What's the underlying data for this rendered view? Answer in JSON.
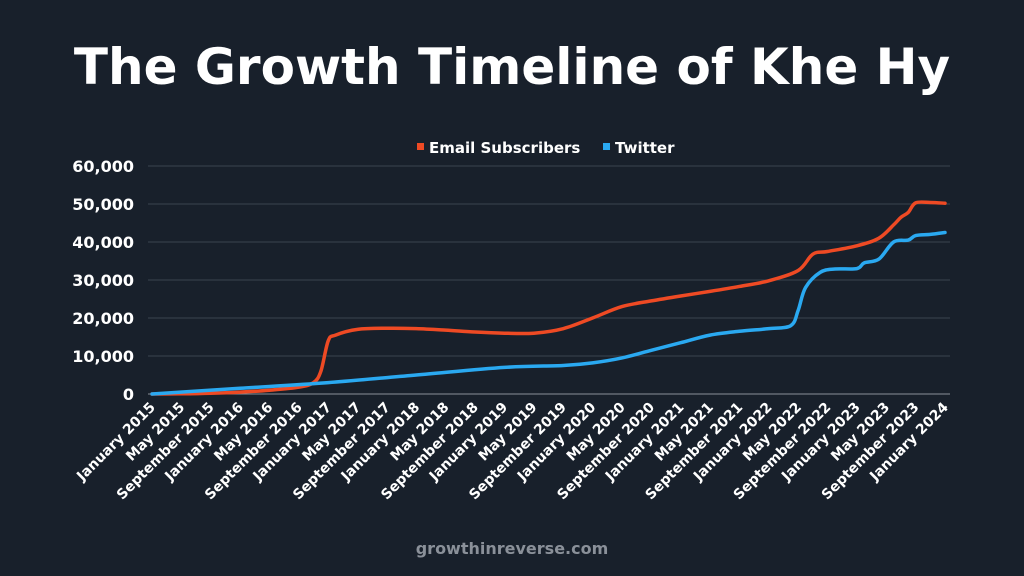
{
  "chart_data": {
    "type": "line",
    "title": "The Growth Timeline of Khe Hy",
    "xlabel": "",
    "ylabel": "",
    "ylim": [
      0,
      60000
    ],
    "yticks": [
      "0",
      "10,000",
      "20,000",
      "30,000",
      "40,000",
      "50,000",
      "60,000"
    ],
    "xticks": [
      "January 2015",
      "May 2015",
      "September 2015",
      "January 2016",
      "May 2016",
      "September 2016",
      "January 2017",
      "May 2017",
      "September 2017",
      "January 2018",
      "May 2018",
      "September 2018",
      "January 2019",
      "May 2019",
      "September 2019",
      "January 2020",
      "May 2020",
      "September 2020",
      "January 2021",
      "May 2021",
      "September 2021",
      "January 2022",
      "May 2022",
      "September 2022",
      "January 2023",
      "May 2023",
      "September 2023",
      "January 2024"
    ],
    "grid": true,
    "legend_position": "top",
    "series": [
      {
        "name": "Email Subscribers",
        "color": "#ee4a24",
        "points": [
          [
            "2015-01",
            0
          ],
          [
            "2015-05",
            50
          ],
          [
            "2015-09",
            200
          ],
          [
            "2016-01",
            500
          ],
          [
            "2016-05",
            1000
          ],
          [
            "2016-09",
            1800
          ],
          [
            "2016-11",
            3000
          ],
          [
            "2016-12",
            6000
          ],
          [
            "2017-01",
            14000
          ],
          [
            "2017-02",
            15500
          ],
          [
            "2017-05",
            17000
          ],
          [
            "2017-09",
            17300
          ],
          [
            "2018-01",
            17200
          ],
          [
            "2018-05",
            16800
          ],
          [
            "2018-09",
            16300
          ],
          [
            "2019-01",
            16000
          ],
          [
            "2019-05",
            16000
          ],
          [
            "2019-09",
            17200
          ],
          [
            "2020-01",
            20000
          ],
          [
            "2020-05",
            23000
          ],
          [
            "2020-09",
            24500
          ],
          [
            "2021-01",
            25800
          ],
          [
            "2021-05",
            27000
          ],
          [
            "2021-09",
            28300
          ],
          [
            "2022-01",
            29800
          ],
          [
            "2022-05",
            32500
          ],
          [
            "2022-07",
            36800
          ],
          [
            "2022-09",
            37500
          ],
          [
            "2023-01",
            39000
          ],
          [
            "2023-04",
            41000
          ],
          [
            "2023-06",
            44500
          ],
          [
            "2023-07",
            46500
          ],
          [
            "2023-08",
            47800
          ],
          [
            "2023-09",
            50300
          ],
          [
            "2023-11",
            50400
          ],
          [
            "2024-01",
            50200
          ]
        ]
      },
      {
        "name": "Twitter",
        "color": "#2aa9f1",
        "points": [
          [
            "2015-01",
            0
          ],
          [
            "2016-01",
            1500
          ],
          [
            "2017-01",
            3000
          ],
          [
            "2018-01",
            5000
          ],
          [
            "2019-01",
            7000
          ],
          [
            "2019-09",
            7500
          ],
          [
            "2020-01",
            8200
          ],
          [
            "2020-05",
            9500
          ],
          [
            "2020-09",
            11500
          ],
          [
            "2021-01",
            13500
          ],
          [
            "2021-05",
            15500
          ],
          [
            "2021-09",
            16500
          ],
          [
            "2022-01",
            17200
          ],
          [
            "2022-04",
            18000
          ],
          [
            "2022-05",
            22000
          ],
          [
            "2022-06",
            28000
          ],
          [
            "2022-08",
            32000
          ],
          [
            "2022-10",
            32900
          ],
          [
            "2023-01",
            33000
          ],
          [
            "2023-02",
            34500
          ],
          [
            "2023-04",
            35500
          ],
          [
            "2023-06",
            40000
          ],
          [
            "2023-08",
            40500
          ],
          [
            "2023-09",
            41700
          ],
          [
            "2023-11",
            42000
          ],
          [
            "2024-01",
            42500
          ]
        ]
      }
    ]
  },
  "footer": "growthinreverse.com"
}
